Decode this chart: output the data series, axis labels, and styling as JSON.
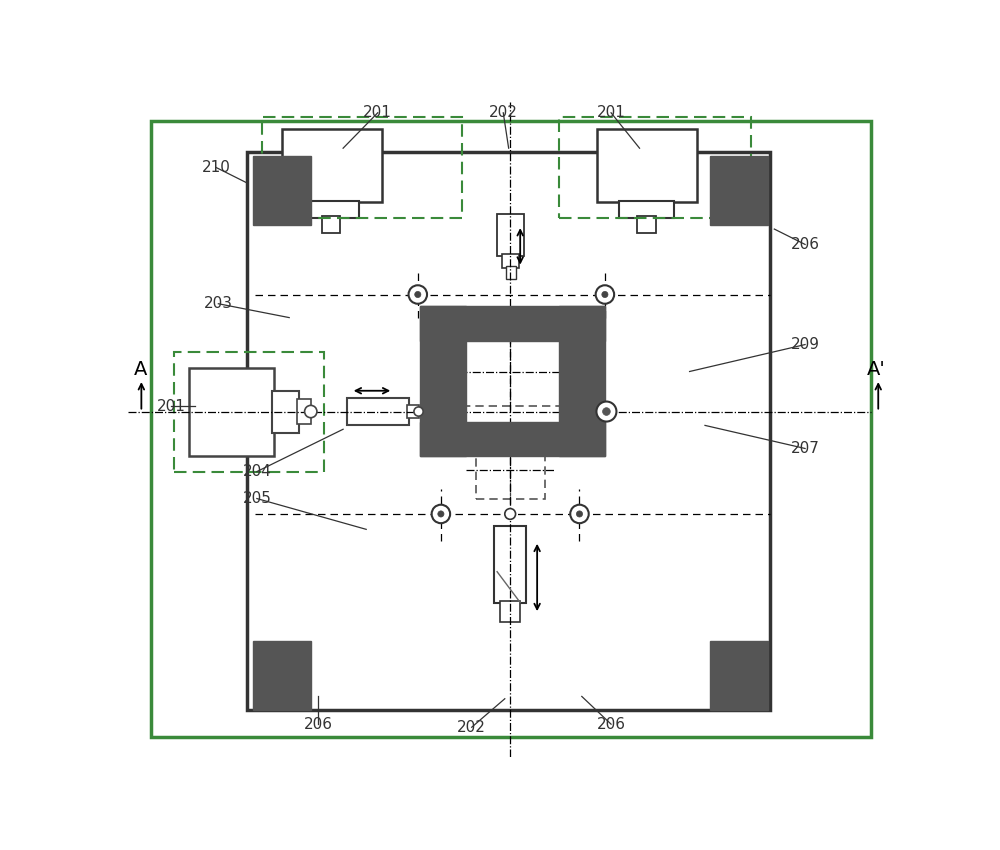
{
  "bg_color": "#ffffff",
  "dark_gray": "#555555",
  "green_border": "#3a8a3a",
  "line_color": "#333333",
  "label_color": "#333333",
  "fs": 11
}
